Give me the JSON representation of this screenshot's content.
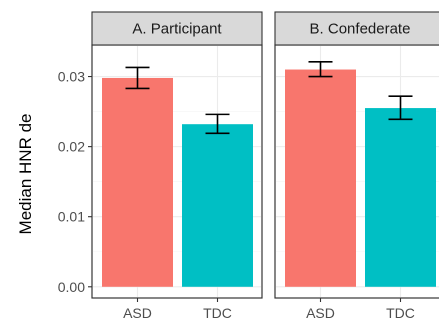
{
  "chart_data": {
    "type": "bar",
    "ylabel": "Median HNR de",
    "xlabel": "",
    "ylim": [
      -0.0016,
      0.0345
    ],
    "yticks": [
      0.0,
      0.01,
      0.02,
      0.03
    ],
    "ytick_labels": [
      "0.00",
      "0.01",
      "0.02",
      "0.03"
    ],
    "categories": [
      "ASD",
      "TDC"
    ],
    "colors": {
      "ASD": "#F8766D",
      "TDC": "#00BFC4"
    },
    "grid": true,
    "legend": "none",
    "panels": [
      {
        "title": "A. Participant",
        "values": [
          0.0298,
          0.0232
        ],
        "error_low": [
          0.0283,
          0.0219
        ],
        "error_high": [
          0.0313,
          0.0246
        ]
      },
      {
        "title": "B. Confederate",
        "values": [
          0.031,
          0.0255
        ],
        "error_low": [
          0.03,
          0.0239
        ],
        "error_high": [
          0.0321,
          0.0272
        ]
      }
    ]
  }
}
